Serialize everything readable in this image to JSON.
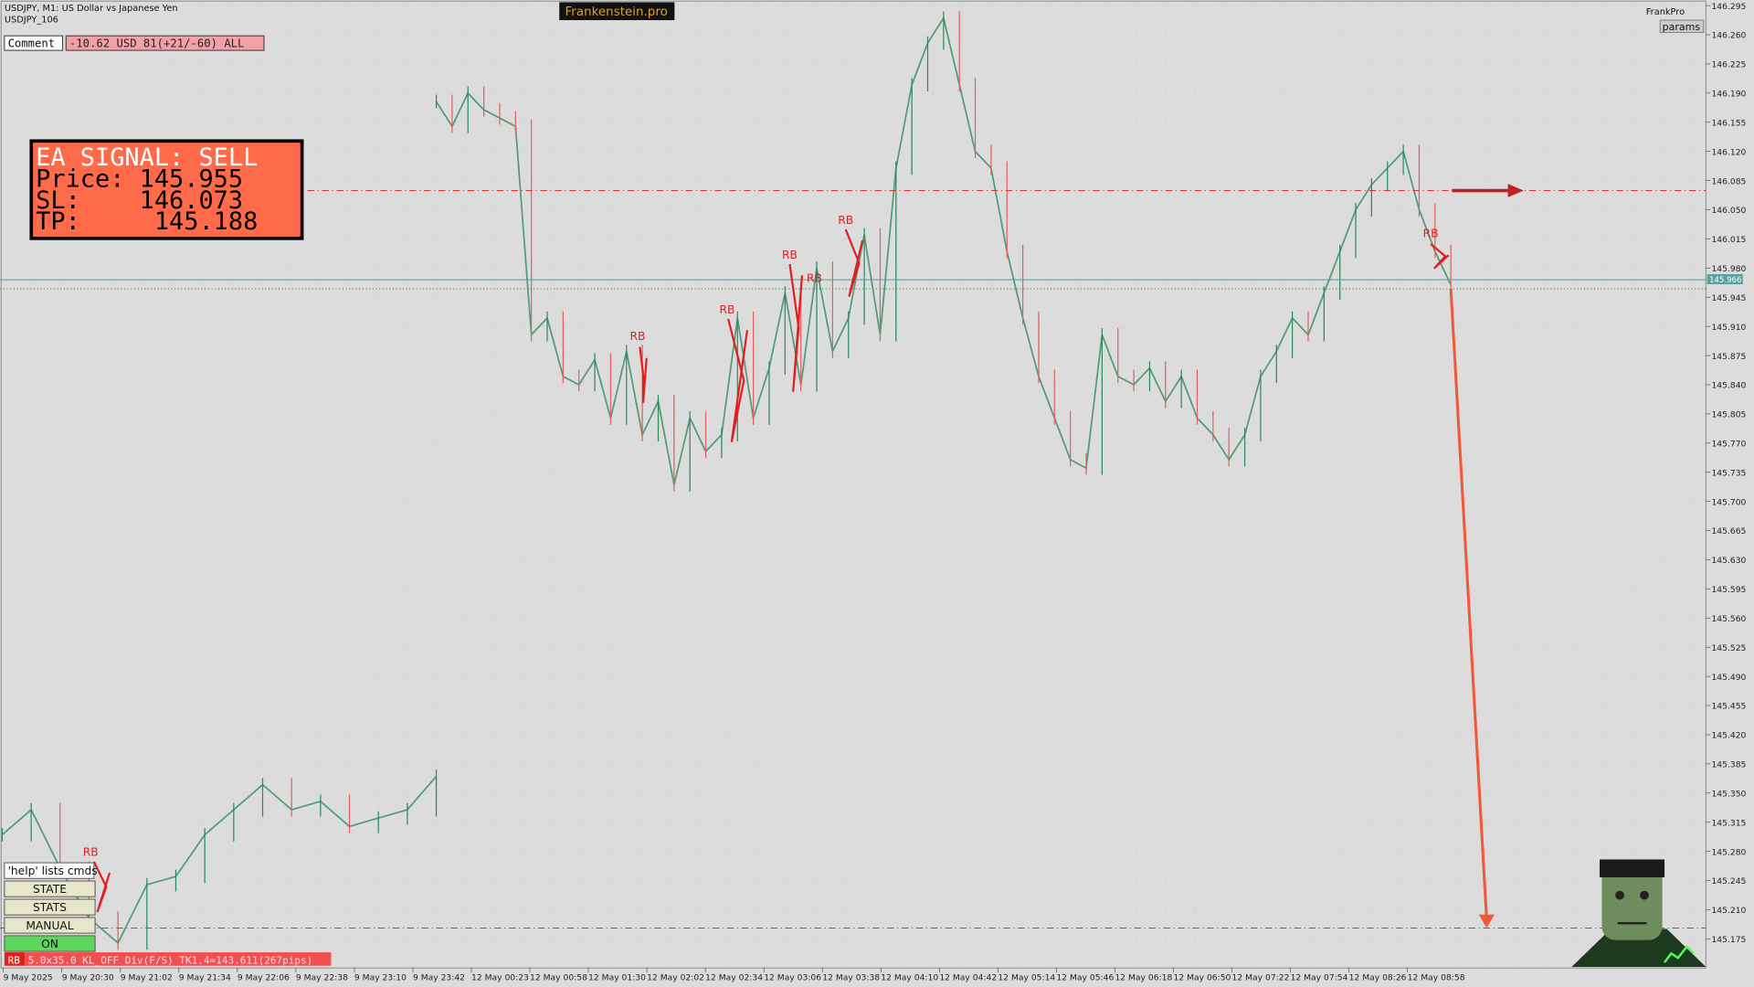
{
  "header": {
    "symbol": "USDJPY, M1:  US Dollar vs Japanese Yen",
    "account": "USDJPY_106",
    "brand": "Frankenstein.pro",
    "profile": "FrankPro",
    "params": "params"
  },
  "comment": {
    "label": "Comment",
    "value": "-10.62 USD 81(+21/-60) ALL"
  },
  "signal": {
    "line1": "EA SIGNAL: SELL",
    "line2": "Price: 145.955",
    "line3": "SL:    146.073",
    "line4": "TP:     145.188"
  },
  "annotations": {
    "rb": "RB"
  },
  "buttons": [
    "'help' lists cmds",
    "STATE",
    "STATS",
    "MANUAL",
    "ON"
  ],
  "status": {
    "tag": "RB",
    "text": "5.0x35.0 KL_OFF Div(F/S) TK1.4=143.611(267pips)"
  },
  "levels": {
    "sl": 146.073,
    "bid": {
      "value": 145.966,
      "label": "145.966"
    },
    "entry": 145.955,
    "tp": 145.188
  },
  "price_axis": [
    {
      "value": 146.295,
      "label": "146.295"
    },
    {
      "value": 146.26,
      "label": "146.260"
    },
    {
      "value": 146.225,
      "label": "146.225"
    },
    {
      "value": 146.19,
      "label": "146.190"
    },
    {
      "value": 146.155,
      "label": "146.155"
    },
    {
      "value": 146.12,
      "label": "146.120"
    },
    {
      "value": 146.085,
      "label": "146.085"
    },
    {
      "value": 146.05,
      "label": "146.050"
    },
    {
      "value": 146.015,
      "label": "146.015"
    },
    {
      "value": 145.98,
      "label": "145.980"
    },
    {
      "value": 145.945,
      "label": "145.945"
    },
    {
      "value": 145.91,
      "label": "145.910"
    },
    {
      "value": 145.875,
      "label": "145.875"
    },
    {
      "value": 145.84,
      "label": "145.840"
    },
    {
      "value": 145.805,
      "label": "145.805"
    },
    {
      "value": 145.77,
      "label": "145.770"
    },
    {
      "value": 145.735,
      "label": "145.735"
    },
    {
      "value": 145.7,
      "label": "145.700"
    },
    {
      "value": 145.665,
      "label": "145.665"
    },
    {
      "value": 145.63,
      "label": "145.630"
    },
    {
      "value": 145.595,
      "label": "145.595"
    },
    {
      "value": 145.56,
      "label": "145.560"
    },
    {
      "value": 145.525,
      "label": "145.525"
    },
    {
      "value": 145.49,
      "label": "145.490"
    },
    {
      "value": 145.455,
      "label": "145.455"
    },
    {
      "value": 145.42,
      "label": "145.420"
    },
    {
      "value": 145.385,
      "label": "145.385"
    },
    {
      "value": 145.35,
      "label": "145.350"
    },
    {
      "value": 145.315,
      "label": "145.315"
    },
    {
      "value": 145.28,
      "label": "145.280"
    },
    {
      "value": 145.245,
      "label": "145.245"
    },
    {
      "value": 145.21,
      "label": "145.210"
    },
    {
      "value": 145.175,
      "label": "145.175"
    }
  ],
  "time_axis": [
    "9 May 2025",
    "9 May 20:30",
    "9 May 21:02",
    "9 May 21:34",
    "9 May 22:06",
    "9 May 22:38",
    "9 May 23:10",
    "9 May 23:42",
    "12 May 00:23",
    "12 May 00:58",
    "12 May 01:30",
    "12 May 02:02",
    "12 May 02:34",
    "12 May 03:06",
    "12 May 03:38",
    "12 May 04:10",
    "12 May 04:42",
    "12 May 05:14",
    "12 May 05:46",
    "12 May 06:18",
    "12 May 06:50",
    "12 May 07:22",
    "12 May 07:54",
    "12 May 08:26",
    "12 May 08:58"
  ],
  "price_trace": [
    [
      145.3,
      145.33,
      145.26,
      145.2,
      145.17,
      145.24,
      145.25,
      145.3,
      145.33,
      145.36,
      145.33,
      145.34,
      145.31,
      145.32,
      145.33,
      145.37
    ],
    [
      146.18,
      146.15,
      146.19,
      146.17,
      146.16,
      146.15,
      145.9,
      145.92,
      145.85,
      145.84,
      145.87,
      145.8,
      145.88,
      145.78,
      145.82,
      145.72,
      145.8,
      145.76,
      145.78,
      145.92,
      145.8,
      145.86,
      145.95,
      145.84,
      145.98,
      145.88,
      145.92,
      146.02,
      145.9,
      146.1,
      146.2,
      146.25,
      146.28,
      146.2,
      146.12,
      146.1,
      146.0,
      145.92,
      145.85,
      145.8,
      145.75,
      145.74,
      145.9,
      145.85,
      145.84,
      145.86,
      145.82,
      145.85,
      145.8,
      145.78,
      145.75,
      145.78,
      145.85,
      145.88,
      145.92,
      145.9,
      145.95,
      146.0,
      146.05,
      146.08,
      146.1,
      146.12,
      146.05,
      146.0,
      145.96
    ]
  ]
}
